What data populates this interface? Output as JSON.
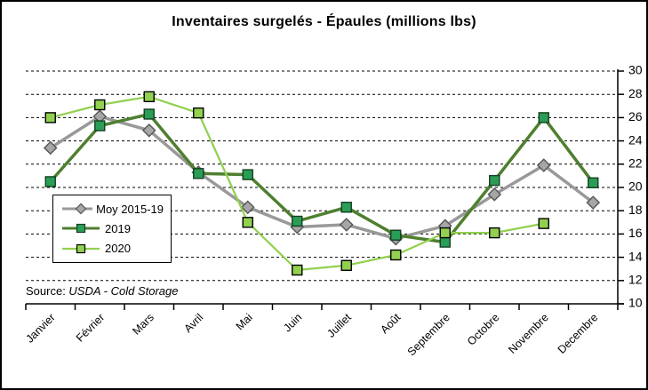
{
  "title": "Inventaires surgelés - Épaules (millions lbs)",
  "source": {
    "prefix": "Source: ",
    "text": "USDA - Cold Storage"
  },
  "chart_data": {
    "type": "line",
    "title": "Inventaires surgelés - Épaules (millions lbs)",
    "categories": [
      "Janvier",
      "Février",
      "Mars",
      "Avril",
      "Mai",
      "Juin",
      "Juillet",
      "Août",
      "Septembre",
      "Octobre",
      "Novembre",
      "Decembre"
    ],
    "series": [
      {
        "name": "Moy 2015-19",
        "marker": "diamond",
        "line_color": "#999999",
        "marker_fill": "#a6a6a6",
        "marker_stroke": "#555555",
        "line_width": 3.5,
        "values": [
          23.4,
          26.1,
          24.9,
          21.3,
          18.3,
          16.6,
          16.8,
          15.6,
          16.7,
          19.4,
          21.9,
          18.7
        ]
      },
      {
        "name": "2019",
        "marker": "square",
        "line_color": "#4e7f2f",
        "marker_fill": "#2a9d56",
        "marker_stroke": "#153f23",
        "line_width": 3.5,
        "values": [
          20.5,
          25.3,
          26.3,
          21.2,
          21.1,
          17.1,
          18.3,
          15.9,
          15.3,
          20.6,
          26.0,
          20.4
        ]
      },
      {
        "name": "2020",
        "marker": "square",
        "line_color": "#92d050",
        "marker_fill": "#92d050",
        "marker_stroke": "#000000",
        "line_width": 2.25,
        "values": [
          26.0,
          27.1,
          27.8,
          26.4,
          17.0,
          12.9,
          13.3,
          14.2,
          16.1,
          16.1,
          16.9,
          null
        ]
      }
    ],
    "ylabel": "",
    "xlabel": "",
    "ylim": [
      10,
      30
    ],
    "ytick_step": 2,
    "yticks": [
      10,
      12,
      14,
      16,
      18,
      20,
      22,
      24,
      26,
      28,
      30
    ],
    "y_axis_side": "right",
    "grid": "dashed-horizontal",
    "legend_position": "middle-left",
    "x_label_rotation": -45
  }
}
